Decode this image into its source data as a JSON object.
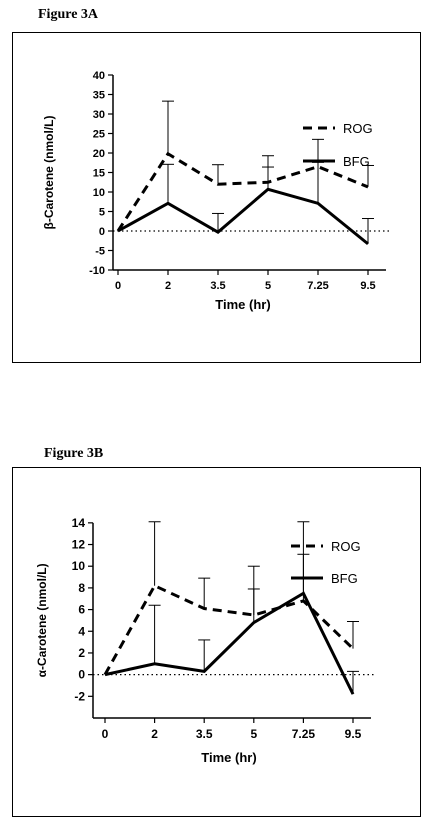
{
  "figures": [
    {
      "label": "Figure 3A"
    },
    {
      "label": "Figure 3B"
    }
  ],
  "chart_data": [
    {
      "type": "line",
      "xlabel": "Time (hr)",
      "ylabel": "β-Carotene (nmol/L)",
      "categories": [
        "0",
        "2",
        "3.5",
        "5",
        "7.25",
        "9.5"
      ],
      "yticks": [
        -10,
        -5,
        0,
        5,
        10,
        15,
        20,
        25,
        30,
        35,
        40
      ],
      "ylim": [
        -10,
        40
      ],
      "reference_line": 0,
      "legend_position": "top-right",
      "series": [
        {
          "name": "ROG",
          "style": "dashed",
          "color": "#000000",
          "values": [
            0,
            19.8,
            12,
            12.5,
            16.5,
            11.3
          ],
          "error": [
            0,
            13.5,
            5,
            6.8,
            7,
            5.5
          ]
        },
        {
          "name": "BFG",
          "style": "solid",
          "color": "#000000",
          "values": [
            0,
            7.1,
            -0.3,
            10.7,
            7.1,
            -3.3
          ],
          "error": [
            0,
            10,
            4.8,
            5.7,
            10.5,
            6.5
          ]
        }
      ]
    },
    {
      "type": "line",
      "xlabel": "Time (hr)",
      "ylabel": "α-Carotene (nmol/L)",
      "categories": [
        "0",
        "2",
        "3.5",
        "5",
        "7.25",
        "9.5"
      ],
      "yticks": [
        -2,
        0,
        2,
        4,
        6,
        8,
        10,
        12,
        14
      ],
      "ylim": [
        -4,
        15
      ],
      "reference_line": 0,
      "legend_position": "top-right",
      "series": [
        {
          "name": "ROG",
          "style": "dashed",
          "color": "#000000",
          "values": [
            0,
            8.2,
            6.1,
            5.5,
            6.8,
            2.4
          ],
          "error": [
            0,
            5.9,
            2.8,
            4.5,
            7.3,
            2.5
          ]
        },
        {
          "name": "BFG",
          "style": "solid",
          "color": "#000000",
          "values": [
            0,
            1.0,
            0.3,
            4.8,
            7.5,
            -1.8
          ],
          "error": [
            0,
            5.4,
            2.9,
            3.1,
            3.6,
            2.1
          ]
        }
      ]
    }
  ]
}
